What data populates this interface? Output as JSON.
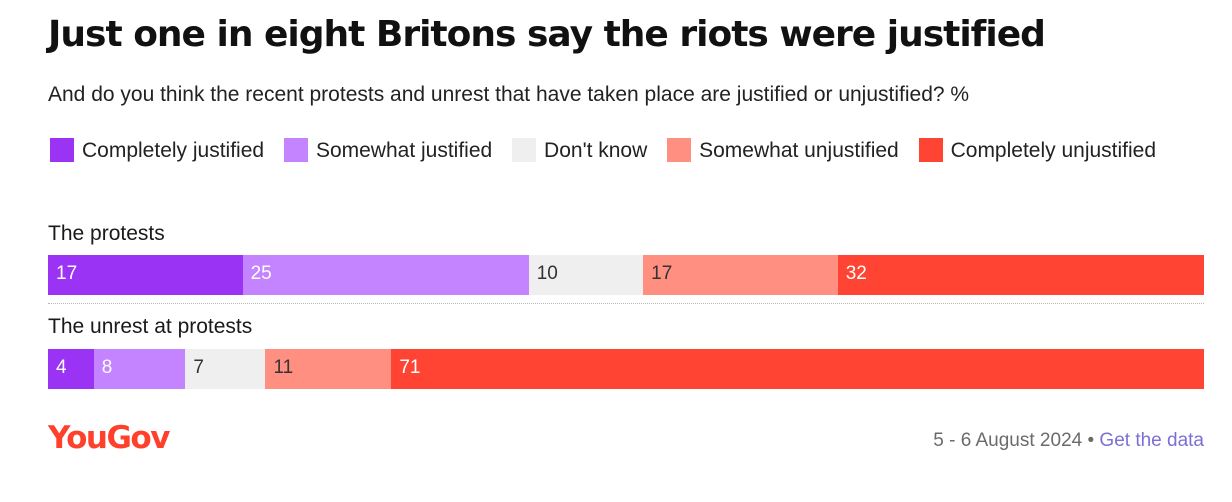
{
  "chart_data": {
    "type": "bar",
    "orientation": "horizontal-stacked",
    "title": "Just one in eight Britons say the riots were justified",
    "subtitle": "And do you think the recent protests and unrest that have taken place are justified or unjustified? %",
    "categories": [
      "The protests",
      "The unrest at protests"
    ],
    "series": [
      {
        "name": "Completely justified",
        "color": "#9b33f5",
        "label_color": "#ffffff",
        "values": [
          17,
          4
        ]
      },
      {
        "name": "Somewhat justified",
        "color": "#c483ff",
        "label_color": "#ffffff",
        "values": [
          25,
          8
        ]
      },
      {
        "name": "Don't know",
        "color": "#efefef",
        "label_color": "#333333",
        "values": [
          10,
          7
        ]
      },
      {
        "name": "Somewhat unjustified",
        "color": "#ff8f80",
        "label_color": "#333333",
        "values": [
          17,
          11
        ]
      },
      {
        "name": "Completely unjustified",
        "color": "#ff4433",
        "label_color": "#ffffff",
        "values": [
          32,
          71
        ]
      }
    ],
    "legend_position": "top",
    "grid": false
  },
  "footer": {
    "brand": "YouGov",
    "brand_color": "#ff412c",
    "date": "5 - 6 August 2024",
    "separator": "•",
    "link_text": "Get the data"
  }
}
